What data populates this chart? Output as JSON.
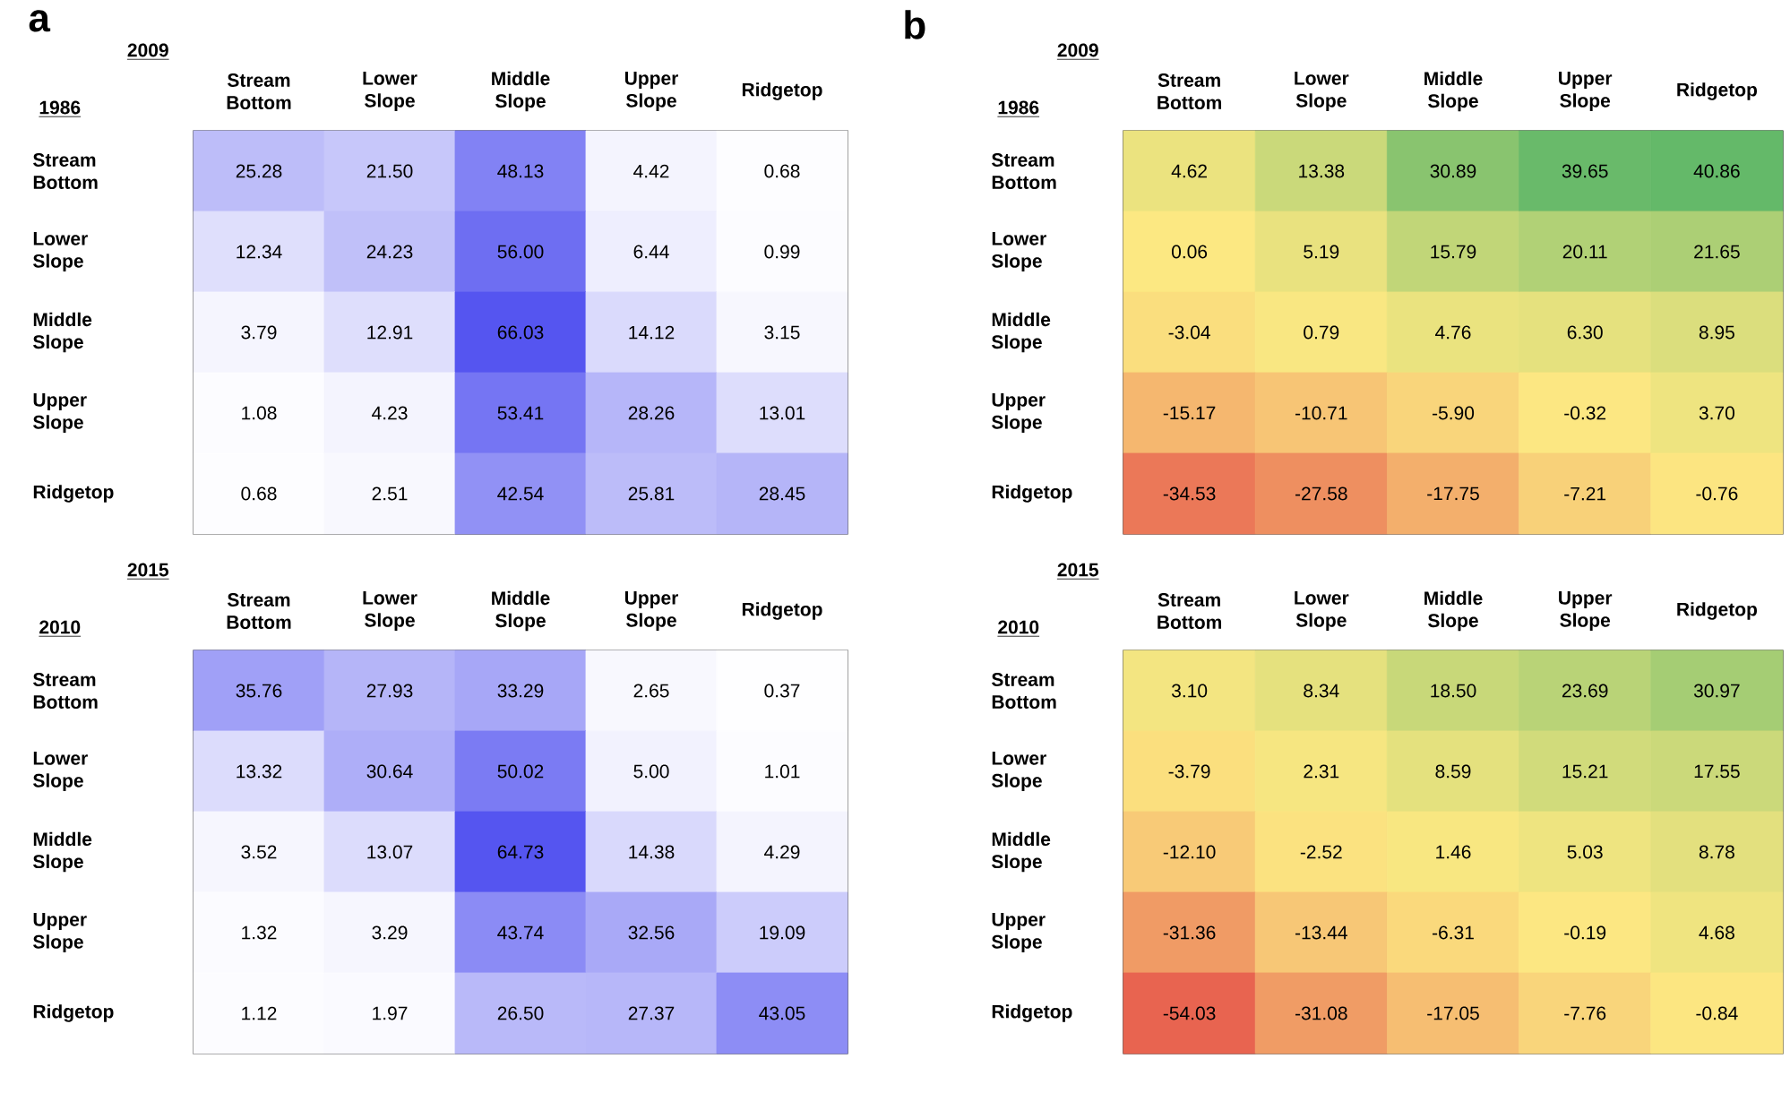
{
  "chart_data": [
    {
      "type": "heatmap",
      "title": "a",
      "xlabel": "2009",
      "ylabel": "1986",
      "categories": [
        "Stream Bottom",
        "Lower Slope",
        "Middle Slope",
        "Upper Slope",
        "Ridgetop"
      ],
      "y_categories": [
        "Stream Bottom",
        "Lower Slope",
        "Middle Slope",
        "Upper Slope",
        "Ridgetop"
      ],
      "cells": [
        [
          25.28,
          21.5,
          48.13,
          4.42,
          0.68
        ],
        [
          12.34,
          24.23,
          56.0,
          6.44,
          0.99
        ],
        [
          3.79,
          12.91,
          66.03,
          14.12,
          3.15
        ],
        [
          1.08,
          4.23,
          53.41,
          28.26,
          13.01
        ],
        [
          0.68,
          2.51,
          42.54,
          25.81,
          28.45
        ]
      ],
      "cell_labels": [
        [
          "25.28",
          "21.50",
          "48.13",
          "4.42",
          "0.68"
        ],
        [
          "12.34",
          "24.23",
          "56.00",
          "6.44",
          "0.99"
        ],
        [
          "3.79",
          "12.91",
          "66.03",
          "14.12",
          "3.15"
        ],
        [
          "1.08",
          "4.23",
          "53.41",
          "28.26",
          "13.01"
        ],
        [
          "0.68",
          "2.51",
          "42.54",
          "25.81",
          "28.45"
        ]
      ]
    },
    {
      "type": "heatmap",
      "title": "b",
      "xlabel": "2009",
      "ylabel": "1986",
      "categories": [
        "Stream Bottom",
        "Lower Slope",
        "Middle Slope",
        "Upper Slope",
        "Ridgetop"
      ],
      "y_categories": [
        "Stream Bottom",
        "Lower Slope",
        "Middle Slope",
        "Upper Slope",
        "Ridgetop"
      ],
      "cells": [
        [
          4.62,
          13.38,
          30.89,
          39.65,
          40.86
        ],
        [
          0.06,
          5.19,
          15.79,
          20.11,
          21.65
        ],
        [
          -3.04,
          0.79,
          4.76,
          6.3,
          8.95
        ],
        [
          -15.17,
          -10.71,
          -5.9,
          -0.32,
          3.7
        ],
        [
          -34.53,
          -27.58,
          -17.75,
          -7.21,
          -0.76
        ]
      ],
      "cell_labels": [
        [
          "4.62",
          "13.38",
          "30.89",
          "39.65",
          "40.86"
        ],
        [
          "0.06",
          "5.19",
          "15.79",
          "20.11",
          "21.65"
        ],
        [
          "-3.04",
          "0.79",
          "4.76",
          "6.30",
          "8.95"
        ],
        [
          "-15.17",
          "-10.71",
          "-5.90",
          "-0.32",
          "3.70"
        ],
        [
          "-34.53",
          "-27.58",
          "-17.75",
          "-7.21",
          "-0.76"
        ]
      ]
    },
    {
      "type": "heatmap",
      "xlabel": "2015",
      "ylabel": "2010",
      "categories": [
        "Stream Bottom",
        "Lower Slope",
        "Middle Slope",
        "Upper Slope",
        "Ridgetop"
      ],
      "y_categories": [
        "Stream Bottom",
        "Lower Slope",
        "Middle Slope",
        "Upper Slope",
        "Ridgetop"
      ],
      "cells": [
        [
          35.76,
          27.93,
          33.29,
          2.65,
          0.37
        ],
        [
          13.32,
          30.64,
          50.02,
          5.0,
          1.01
        ],
        [
          3.52,
          13.07,
          64.73,
          14.38,
          4.29
        ],
        [
          1.32,
          3.29,
          43.74,
          32.56,
          19.09
        ],
        [
          1.12,
          1.97,
          26.5,
          27.37,
          43.05
        ]
      ],
      "cell_labels": [
        [
          "35.76",
          "27.93",
          "33.29",
          "2.65",
          "0.37"
        ],
        [
          "13.32",
          "30.64",
          "50.02",
          "5.00",
          "1.01"
        ],
        [
          "3.52",
          "13.07",
          "64.73",
          "14.38",
          "4.29"
        ],
        [
          "1.32",
          "3.29",
          "43.74",
          "32.56",
          "19.09"
        ],
        [
          "1.12",
          "1.97",
          "26.50",
          "27.37",
          "43.05"
        ]
      ]
    },
    {
      "type": "heatmap",
      "xlabel": "2015",
      "ylabel": "2010",
      "categories": [
        "Stream Bottom",
        "Lower Slope",
        "Middle Slope",
        "Upper Slope",
        "Ridgetop"
      ],
      "y_categories": [
        "Stream Bottom",
        "Lower Slope",
        "Middle Slope",
        "Upper Slope",
        "Ridgetop"
      ],
      "cells": [
        [
          3.1,
          8.34,
          18.5,
          23.69,
          30.97
        ],
        [
          -3.79,
          2.31,
          8.59,
          15.21,
          17.55
        ],
        [
          -12.1,
          -2.52,
          1.46,
          5.03,
          8.78
        ],
        [
          -31.36,
          -13.44,
          -6.31,
          -0.19,
          4.68
        ],
        [
          -54.03,
          -31.08,
          -17.05,
          -7.76,
          -0.84
        ]
      ],
      "cell_labels": [
        [
          "3.10",
          "8.34",
          "18.50",
          "23.69",
          "30.97"
        ],
        [
          "-3.79",
          "2.31",
          "8.59",
          "15.21",
          "17.55"
        ],
        [
          "-12.10",
          "-2.52",
          "1.46",
          "5.03",
          "8.78"
        ],
        [
          "-31.36",
          "-13.44",
          "-6.31",
          "-0.19",
          "4.68"
        ],
        [
          "-54.03",
          "-31.08",
          "-17.05",
          "-7.76",
          "-0.84"
        ]
      ]
    }
  ]
}
